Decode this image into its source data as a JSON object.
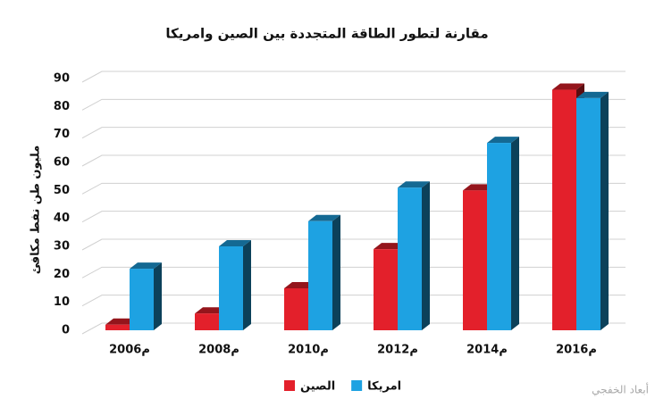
{
  "chart_data": {
    "type": "bar",
    "title": "مقارنة لتطور الطاقة المتجددة بين الصين وامريكا",
    "y_label": "مليون طن نفط مكافئ",
    "categories": [
      "2006م",
      "2008م",
      "2010م",
      "2012م",
      "2014م",
      "2016م"
    ],
    "series": [
      {
        "name": "الصين",
        "color": "#e3202b",
        "values": [
          2,
          6,
          15,
          29,
          50,
          86
        ]
      },
      {
        "name": "امريكا",
        "color": "#1ea2e2",
        "values": [
          22,
          30,
          39,
          51,
          67,
          83
        ]
      }
    ],
    "ylim": [
      0,
      90
    ],
    "yticks": [
      0,
      10,
      20,
      30,
      40,
      50,
      60,
      70,
      80,
      90
    ],
    "grid": true,
    "watermark": "أبعاد الخفجي"
  }
}
